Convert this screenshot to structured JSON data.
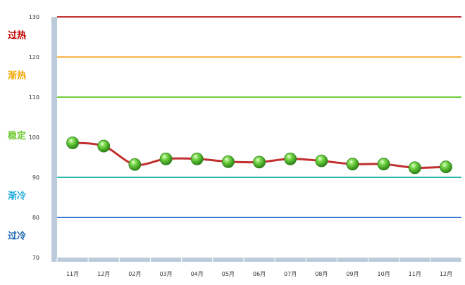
{
  "chart_data": {
    "type": "line",
    "categories": [
      "11月",
      "12月",
      "02月",
      "03月",
      "04月",
      "05月",
      "06月",
      "07月",
      "08月",
      "09月",
      "10月",
      "11月",
      "12月"
    ],
    "values": [
      98.6,
      97.8,
      93.2,
      94.6,
      94.6,
      93.9,
      93.8,
      94.6,
      94.1,
      93.3,
      93.3,
      92.4,
      92.6
    ],
    "ylim": [
      70,
      130
    ],
    "yticks": [
      70,
      80,
      90,
      100,
      110,
      120,
      130
    ],
    "grid": false,
    "line_color": "#c0302f",
    "marker_color": "#4caf28",
    "axis_color": "#bccbdb",
    "reference_lines": [
      {
        "value": 130,
        "color": "#c0302f"
      },
      {
        "value": 120,
        "color": "#f7b244"
      },
      {
        "value": 110,
        "color": "#6fd13b"
      },
      {
        "value": 90,
        "color": "#2bb8a6"
      },
      {
        "value": 80,
        "color": "#3f7bd0"
      }
    ],
    "zone_labels": [
      {
        "text": "过热",
        "value": 125.5,
        "color": "#c00000"
      },
      {
        "text": "渐热",
        "value": 115.5,
        "color": "#f0a800"
      },
      {
        "text": "稳定",
        "value": 100.5,
        "color": "#6cc830"
      },
      {
        "text": "渐冷",
        "value": 85.5,
        "color": "#22aee0"
      },
      {
        "text": "过冷",
        "value": 75.5,
        "color": "#1a64b0"
      }
    ]
  }
}
